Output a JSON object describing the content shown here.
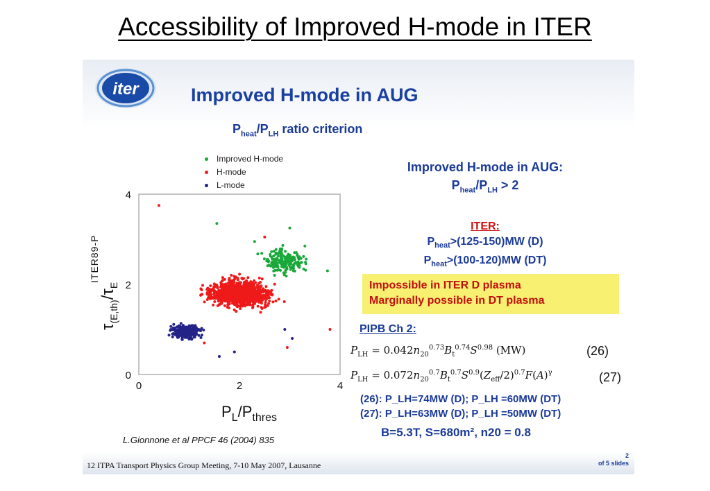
{
  "page": {
    "title": "Accessibility of Improved H-mode in ITER"
  },
  "slide": {
    "heading": "Improved H-mode in AUG",
    "logo_text": "iter",
    "criterion": {
      "p": "P",
      "heat": "heat",
      "slash": "/P",
      "lh": "LH",
      "rest": " ratio criterion"
    },
    "right_title_line1": "Improved H-mode in AUG:",
    "right_title_line2": {
      "p": "P",
      "heat": "heat",
      "slash": "/P",
      "lh": "LH",
      "rest": " > 2"
    },
    "iter_title": "ITER:",
    "iter_line1": {
      "p": "P",
      "heat": "heat",
      "rest": ">(125-150)MW (D)"
    },
    "iter_line2": {
      "p": "P",
      "heat": "heat",
      "rest": ">(100-120)MW (DT)"
    },
    "warning_line1": "Impossible in ITER D plasma",
    "warning_line2": "Marginally possible in DT plasma",
    "pipb_title": "PIPB Ch 2:",
    "eq1_number": "(26)",
    "eq2_number": "(27)",
    "result1": "(26): P_LH=74MW (D); P_LH =60MW (DT)",
    "result2": "(27): P_LH=63MW (D); P_LH =50MW (DT)",
    "params": "B=5.3T, S=680m², n20 = 0.8",
    "citation": "L.Gionnone et al PPCF 46 (2004) 835",
    "footer": "12 ITPA Transport Physics Group Meeting, 7-10 May 2007, Lausanne",
    "page_number": "2",
    "page_of": "of 5 slides"
  },
  "colors": {
    "improved": "#1aa83a",
    "hmode": "#ee1a1a",
    "lmode": "#232388",
    "heading": "#1a40a0",
    "warning_bg": "#f8f070"
  },
  "chart_data": {
    "type": "scatter",
    "title": "",
    "xlabel": "P_L/P_thres",
    "ylabel": "τ_(E,th)/τ_E ITER89-P",
    "xlim": [
      0,
      4
    ],
    "ylim": [
      0,
      4
    ],
    "xticks": [
      "0",
      "2",
      "4"
    ],
    "yticks": [
      "0",
      "2",
      "4"
    ],
    "legend_position": "top-left",
    "series": [
      {
        "name": "Improved H-mode",
        "color": "#1aa83a",
        "center": [
          2.9,
          2.5
        ],
        "spread": [
          0.5,
          0.35
        ],
        "count": 180,
        "outliers": [
          [
            1.55,
            3.35
          ],
          [
            2.3,
            2.95
          ],
          [
            3.0,
            3.25
          ],
          [
            3.3,
            2.85
          ],
          [
            3.75,
            2.3
          ]
        ]
      },
      {
        "name": "H-mode",
        "color": "#ee1a1a",
        "center": [
          2.0,
          1.8
        ],
        "spread": [
          0.75,
          0.35
        ],
        "count": 1100,
        "outliers": [
          [
            0.4,
            3.75
          ],
          [
            1.3,
            0.7
          ],
          [
            2.95,
            0.6
          ],
          [
            3.8,
            1.0
          ],
          [
            2.5,
            3.05
          ]
        ]
      },
      {
        "name": "L-mode",
        "color": "#232388",
        "center": [
          0.95,
          0.95
        ],
        "spread": [
          0.35,
          0.17
        ],
        "count": 360,
        "outliers": [
          [
            1.6,
            0.4
          ],
          [
            2.9,
            1.0
          ],
          [
            1.9,
            0.5
          ],
          [
            3.05,
            0.8
          ]
        ]
      }
    ]
  }
}
